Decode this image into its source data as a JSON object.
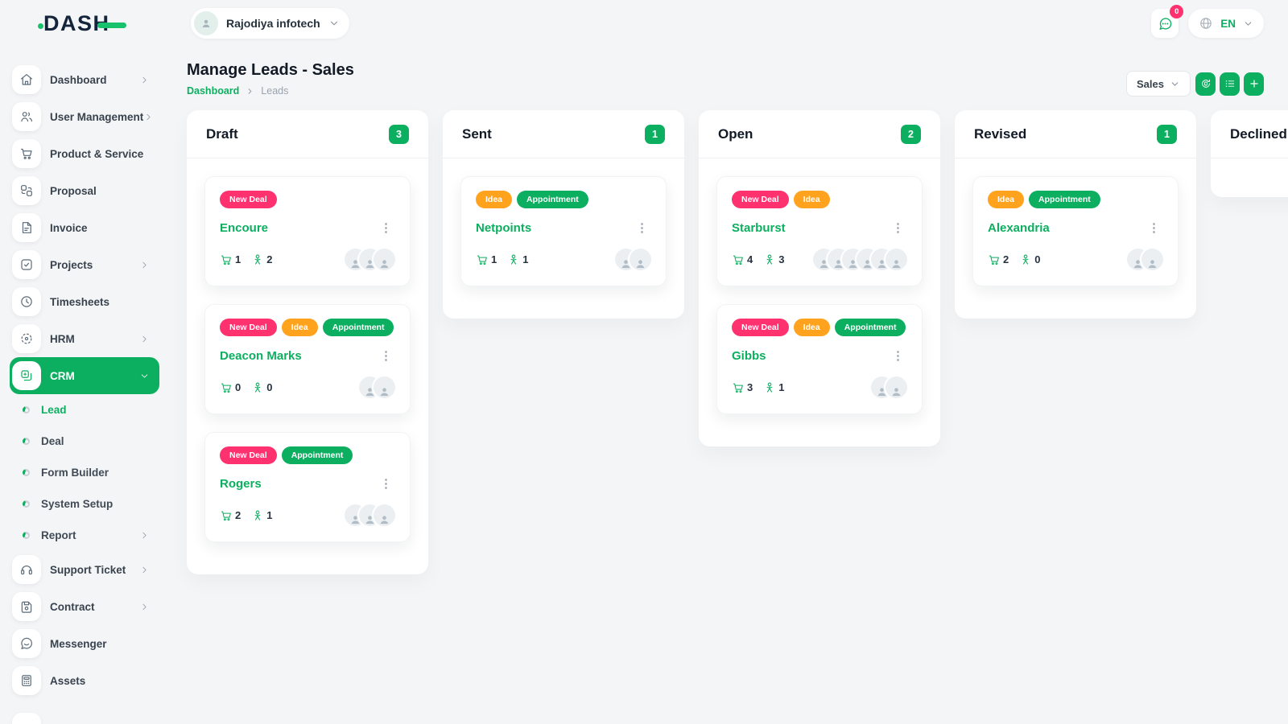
{
  "brand": {
    "name": "DASH"
  },
  "topbar": {
    "company": "Rajodiya infotech",
    "company_avatar_icon": "person-icon",
    "chat_icon": "message-icon",
    "chat_badge": "0",
    "globe_icon": "globe-icon",
    "language": "EN"
  },
  "page": {
    "title": "Manage Leads - Sales",
    "breadcrumb_home": "Dashboard",
    "breadcrumb_current": "Leads",
    "pipeline": "Sales",
    "action_buttons": [
      {
        "name": "convert-button",
        "icon": "convert-file-icon"
      },
      {
        "name": "list-view-button",
        "icon": "list-icon"
      },
      {
        "name": "add-lead-button",
        "icon": "plus-icon"
      }
    ]
  },
  "sidebar": {
    "items": [
      {
        "label": "Dashboard",
        "icon": "home-icon",
        "chevron": "right"
      },
      {
        "label": "User Management",
        "icon": "users-icon",
        "chevron": "right"
      },
      {
        "label": "Product & Service",
        "icon": "cart-icon"
      },
      {
        "label": "Proposal",
        "icon": "proposal-icon"
      },
      {
        "label": "Invoice",
        "icon": "invoice-icon"
      },
      {
        "label": "Projects",
        "icon": "projects-icon",
        "chevron": "right"
      },
      {
        "label": "Timesheets",
        "icon": "clock-icon"
      },
      {
        "label": "HRM",
        "icon": "hrm-icon",
        "chevron": "right"
      },
      {
        "label": "CRM",
        "icon": "crm-icon",
        "chevron": "down",
        "active": true
      },
      {
        "label": "Lead",
        "sub": true,
        "active": true
      },
      {
        "label": "Deal",
        "sub": true
      },
      {
        "label": "Form Builder",
        "sub": true
      },
      {
        "label": "System Setup",
        "sub": true
      },
      {
        "label": "Report",
        "sub": true,
        "chevron": "right"
      },
      {
        "label": "Support Ticket",
        "icon": "headset-icon",
        "chevron": "right"
      },
      {
        "label": "Contract",
        "icon": "contract-icon",
        "chevron": "right"
      },
      {
        "label": "Messenger",
        "icon": "messenger-icon"
      },
      {
        "label": "Assets",
        "icon": "assets-icon"
      },
      {
        "label": "",
        "icon": "partial-icon",
        "partial": true
      }
    ]
  },
  "board": {
    "tag_colors": {
      "New Deal": "#FF316F",
      "Idea": "#FFA21D",
      "Appointment": "#0CAF60"
    },
    "columns": [
      {
        "name": "Draft",
        "count": "3",
        "cards": [
          {
            "name": "Encoure",
            "tags": [
              "New Deal"
            ],
            "products": "1",
            "users": "2",
            "avatars": 3
          },
          {
            "name": "Deacon Marks",
            "tags": [
              "New Deal",
              "Idea",
              "Appointment"
            ],
            "products": "0",
            "users": "0",
            "avatars": 2
          },
          {
            "name": "Rogers",
            "tags": [
              "New Deal",
              "Appointment"
            ],
            "products": "2",
            "users": "1",
            "avatars": 3
          }
        ]
      },
      {
        "name": "Sent",
        "count": "1",
        "cards": [
          {
            "name": "Netpoints",
            "tags": [
              "Idea",
              "Appointment"
            ],
            "products": "1",
            "users": "1",
            "avatars": 2
          }
        ]
      },
      {
        "name": "Open",
        "count": "2",
        "cards": [
          {
            "name": "Starburst",
            "tags": [
              "New Deal",
              "Idea"
            ],
            "products": "4",
            "users": "3",
            "avatars": 6
          },
          {
            "name": "Gibbs",
            "tags": [
              "New Deal",
              "Idea",
              "Appointment"
            ],
            "products": "3",
            "users": "1",
            "avatars": 2
          }
        ]
      },
      {
        "name": "Revised",
        "count": "1",
        "cards": [
          {
            "name": "Alexandria",
            "tags": [
              "Idea",
              "Appointment"
            ],
            "products": "2",
            "users": "0",
            "avatars": 2
          }
        ]
      },
      {
        "name": "Declined",
        "count": null,
        "cards": []
      }
    ]
  },
  "colors": {
    "primary": "#0CAF60",
    "pink": "#FF316F",
    "orange": "#FFA21D"
  }
}
